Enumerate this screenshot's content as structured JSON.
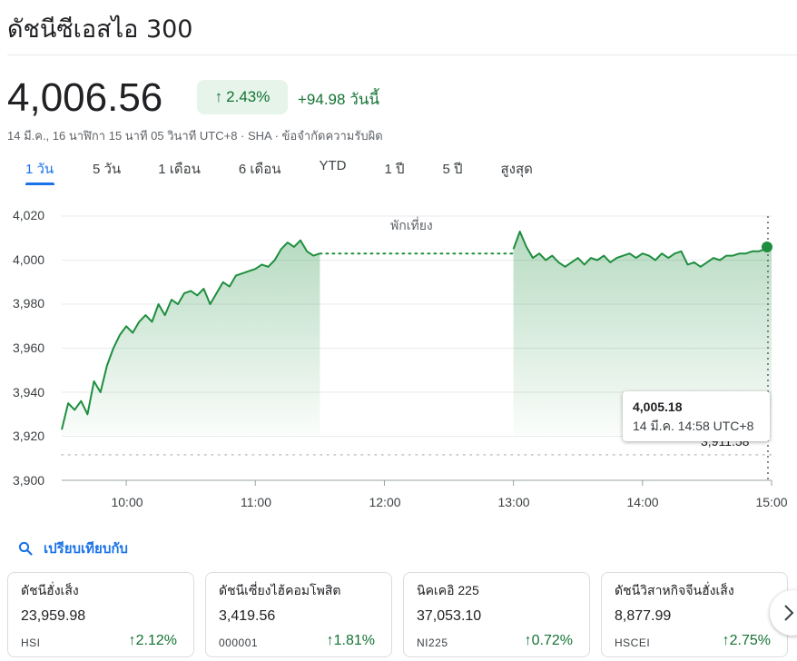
{
  "header": {
    "title": "ดัชนีซีเอสไอ 300",
    "price": "4,006.56",
    "change_percent": "2.43%",
    "change_abs": "+94.98 วันนี้",
    "meta": "14 มี.ค., 16 นาฬิกา 15 นาที 05 วินาที UTC+8 · SHA · ข้อจำกัดความรับผิด"
  },
  "tabs": [
    "1 วัน",
    "5 วัน",
    "1 เดือน",
    "6 เดือน",
    "YTD",
    "1 ปี",
    "5 ปี",
    "สูงสุด"
  ],
  "active_tab": 0,
  "chart_data": {
    "type": "line",
    "y_ticks": [
      "4,020",
      "4,000",
      "3,980",
      "3,960",
      "3,940",
      "3,920",
      "3,900"
    ],
    "x_ticks": [
      "10:00",
      "11:00",
      "12:00",
      "13:00",
      "14:00",
      "15:00"
    ],
    "ylim": [
      3900,
      4020
    ],
    "break_label": "พักเที่ยง",
    "previous_close": 3911.58,
    "previous_close_label_partial": "3,911.58",
    "series": [
      {
        "session": "morning",
        "x": [
          "09:30",
          "09:33",
          "09:36",
          "09:39",
          "09:42",
          "09:45",
          "09:48",
          "09:51",
          "09:54",
          "09:57",
          "10:00",
          "10:03",
          "10:06",
          "10:09",
          "10:12",
          "10:15",
          "10:18",
          "10:21",
          "10:24",
          "10:27",
          "10:30",
          "10:33",
          "10:36",
          "10:39",
          "10:42",
          "10:45",
          "10:48",
          "10:51",
          "10:54",
          "10:57",
          "11:00",
          "11:03",
          "11:06",
          "11:09",
          "11:12",
          "11:15",
          "11:18",
          "11:21",
          "11:24",
          "11:27",
          "11:30"
        ],
        "values": [
          3923,
          3935,
          3932,
          3936,
          3930,
          3945,
          3940,
          3952,
          3960,
          3966,
          3970,
          3967,
          3972,
          3975,
          3972,
          3980,
          3975,
          3982,
          3980,
          3985,
          3986,
          3984,
          3987,
          3980,
          3985,
          3990,
          3988,
          3993,
          3994,
          3995,
          3996,
          3998,
          3997,
          4000,
          4005,
          4008,
          4006,
          4009,
          4004,
          4002,
          4003
        ]
      },
      {
        "session": "afternoon",
        "x": [
          "13:00",
          "13:03",
          "13:06",
          "13:09",
          "13:12",
          "13:15",
          "13:18",
          "13:21",
          "13:24",
          "13:27",
          "13:30",
          "13:33",
          "13:36",
          "13:39",
          "13:42",
          "13:45",
          "13:48",
          "13:51",
          "13:54",
          "13:57",
          "14:00",
          "14:03",
          "14:06",
          "14:09",
          "14:12",
          "14:15",
          "14:18",
          "14:21",
          "14:24",
          "14:27",
          "14:30",
          "14:33",
          "14:36",
          "14:39",
          "14:42",
          "14:45",
          "14:48",
          "14:51",
          "14:54",
          "14:57",
          "15:00"
        ],
        "values": [
          4005,
          4013,
          4006,
          4001,
          4003,
          4000,
          4002,
          3999,
          3997,
          3999,
          4001,
          3998,
          4001,
          4000,
          4002,
          3999,
          4001,
          4002,
          4003,
          4001,
          4003,
          4002,
          4000,
          4003,
          4001,
          4003,
          4004,
          3998,
          3999,
          3997,
          3999,
          4001,
          4000,
          4002,
          4002,
          4003,
          4003,
          4004,
          4004,
          4005,
          4006
        ]
      }
    ],
    "tooltip": {
      "value": "4,005.18",
      "time": "14 มี.ค. 14:58 UTC+8"
    }
  },
  "compare": {
    "label": "เปรียบเทียบกับ"
  },
  "cards": [
    {
      "name": "ดัชนีฮั่งเส็ง",
      "price": "23,959.98",
      "symbol": "HSI",
      "change": "2.12%"
    },
    {
      "name": "ดัชนีเซี่ยงไฮ้คอมโพสิต",
      "price": "3,419.56",
      "symbol": "000001",
      "change": "1.81%"
    },
    {
      "name": "นิคเคอิ 225",
      "price": "37,053.10",
      "symbol": "NI225",
      "change": "0.72%"
    },
    {
      "name": "ดัชนีวิสาหกิจจีนฮั่งเส็ง",
      "price": "8,877.99",
      "symbol": "HSCEI",
      "change": "2.75%"
    }
  ],
  "colors": {
    "green": "#1e8e3e",
    "green_text": "#137333",
    "blue": "#1a73e8",
    "fill": "#e6f4ea"
  },
  "icons": {
    "up": "arrow-up-icon",
    "search": "search-icon",
    "next": "chevron-right-icon"
  }
}
